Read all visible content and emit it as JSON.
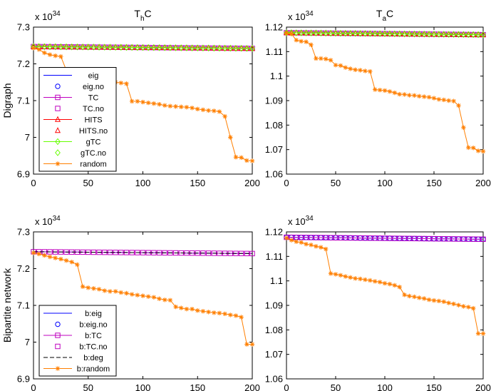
{
  "chart_data": [
    {
      "type": "line",
      "title_main": "T",
      "title_sub": "h",
      "title_tail": "C",
      "ylabel": "Digraph",
      "exponent_base": "x 10",
      "exponent_power": "34",
      "xlim": [
        0,
        200
      ],
      "ylim": [
        6.9,
        7.3
      ],
      "xticks": [
        "0",
        "50",
        "100",
        "150",
        "200"
      ],
      "yticks": [
        "6.9",
        "7",
        "7.1",
        "7.2",
        "7.3"
      ],
      "legend_position": "lower-left",
      "flat": {
        "start": 7.247,
        "end": 7.242
      },
      "series": [
        {
          "name": "eig",
          "color": "#0000ff",
          "dash": false,
          "marker": "none"
        },
        {
          "name": "eig.no",
          "color": "#0000ff",
          "dash": false,
          "marker": "circle",
          "markerOnly": true
        },
        {
          "name": "TC",
          "color": "#bf00bf",
          "dash": false,
          "marker": "square"
        },
        {
          "name": "TC.no",
          "color": "#bf00bf",
          "dash": false,
          "marker": "square",
          "markerOnly": true
        },
        {
          "name": "HITS",
          "color": "#ff0000",
          "dash": false,
          "marker": "triangle"
        },
        {
          "name": "HITS.no",
          "color": "#ff0000",
          "dash": false,
          "marker": "triangle",
          "markerOnly": true
        },
        {
          "name": "gTC",
          "color": "#66ff00",
          "dash": false,
          "marker": "diamond"
        },
        {
          "name": "gTC.no",
          "color": "#66ff00",
          "dash": false,
          "marker": "diamond",
          "markerOnly": true
        },
        {
          "name": "random",
          "color": "#ff7f00",
          "dash": false,
          "marker": "star"
        }
      ],
      "random": [
        [
          0,
          7.243
        ],
        [
          5,
          7.239
        ],
        [
          10,
          7.23
        ],
        [
          15,
          7.225
        ],
        [
          20,
          7.222
        ],
        [
          25,
          7.22
        ],
        [
          30,
          7.183
        ],
        [
          35,
          7.183
        ],
        [
          40,
          7.182
        ],
        [
          45,
          7.178
        ],
        [
          50,
          7.165
        ],
        [
          55,
          7.162
        ],
        [
          60,
          7.158
        ],
        [
          65,
          7.155
        ],
        [
          70,
          7.153
        ],
        [
          75,
          7.15
        ],
        [
          80,
          7.148
        ],
        [
          85,
          7.146
        ],
        [
          90,
          7.098
        ],
        [
          95,
          7.098
        ],
        [
          100,
          7.096
        ],
        [
          105,
          7.094
        ],
        [
          110,
          7.092
        ],
        [
          115,
          7.09
        ],
        [
          120,
          7.087
        ],
        [
          125,
          7.085
        ],
        [
          130,
          7.084
        ],
        [
          135,
          7.083
        ],
        [
          140,
          7.082
        ],
        [
          145,
          7.08
        ],
        [
          150,
          7.077
        ],
        [
          155,
          7.075
        ],
        [
          160,
          7.073
        ],
        [
          165,
          7.072
        ],
        [
          170,
          7.07
        ],
        [
          175,
          7.057
        ],
        [
          180,
          7.0
        ],
        [
          185,
          6.946
        ],
        [
          190,
          6.945
        ],
        [
          195,
          6.937
        ],
        [
          200,
          6.936
        ]
      ]
    },
    {
      "type": "line",
      "title_main": "T",
      "title_sub": "a",
      "title_tail": "C",
      "ylabel": "",
      "exponent_base": "x 10",
      "exponent_power": "34",
      "xlim": [
        0,
        200
      ],
      "ylim": [
        1.06,
        1.12
      ],
      "xticks": [
        "0",
        "50",
        "100",
        "150",
        "200"
      ],
      "yticks": [
        "1.06",
        "1.07",
        "1.08",
        "1.09",
        "1.1",
        "1.11",
        "1.12"
      ],
      "legend_position": "none",
      "flat": {
        "start": 1.1177,
        "end": 1.1169
      },
      "series": [
        {
          "name": "eig",
          "color": "#0000ff",
          "dash": false,
          "marker": "none"
        },
        {
          "name": "TC",
          "color": "#bf00bf",
          "dash": false,
          "marker": "square"
        },
        {
          "name": "HITS",
          "color": "#ff0000",
          "dash": false,
          "marker": "triangle"
        },
        {
          "name": "gTC",
          "color": "#66ff00",
          "dash": false,
          "marker": "diamond"
        },
        {
          "name": "random",
          "color": "#ff7f00",
          "dash": false,
          "marker": "star"
        }
      ],
      "random": [
        [
          0,
          1.1175
        ],
        [
          5,
          1.1172
        ],
        [
          10,
          1.1147
        ],
        [
          15,
          1.1142
        ],
        [
          20,
          1.114
        ],
        [
          25,
          1.1128
        ],
        [
          30,
          1.1072
        ],
        [
          35,
          1.1072
        ],
        [
          40,
          1.107
        ],
        [
          45,
          1.1065
        ],
        [
          50,
          1.1045
        ],
        [
          55,
          1.1043
        ],
        [
          60,
          1.1035
        ],
        [
          65,
          1.103
        ],
        [
          70,
          1.1026
        ],
        [
          75,
          1.1024
        ],
        [
          80,
          1.1021
        ],
        [
          85,
          1.1019
        ],
        [
          90,
          1.0945
        ],
        [
          95,
          1.0943
        ],
        [
          100,
          1.0941
        ],
        [
          105,
          1.0937
        ],
        [
          110,
          1.0932
        ],
        [
          115,
          1.0926
        ],
        [
          120,
          1.0925
        ],
        [
          125,
          1.0922
        ],
        [
          130,
          1.0921
        ],
        [
          135,
          1.0918
        ],
        [
          140,
          1.0916
        ],
        [
          145,
          1.0914
        ],
        [
          150,
          1.091
        ],
        [
          155,
          1.0905
        ],
        [
          160,
          1.0903
        ],
        [
          165,
          1.09
        ],
        [
          170,
          1.0898
        ],
        [
          175,
          1.088
        ],
        [
          180,
          1.079
        ],
        [
          185,
          1.0708
        ],
        [
          190,
          1.0707
        ],
        [
          195,
          1.0695
        ],
        [
          200,
          1.0693
        ]
      ]
    },
    {
      "type": "line",
      "title_main": "",
      "title_sub": "",
      "title_tail": "",
      "ylabel": "Bipartite network",
      "exponent_base": "x 10",
      "exponent_power": "34",
      "xlim": [
        0,
        200
      ],
      "ylim": [
        6.9,
        7.3
      ],
      "xticks": [
        "0",
        "50",
        "100",
        "150",
        "200"
      ],
      "yticks": [
        "6.9",
        "7",
        "7.1",
        "7.2",
        "7.3"
      ],
      "legend_position": "lower-left",
      "flat": {
        "start": 7.246,
        "end": 7.241
      },
      "series": [
        {
          "name": "b:eig",
          "color": "#0000ff",
          "dash": false,
          "marker": "none"
        },
        {
          "name": "b:eig.no",
          "color": "#0000ff",
          "dash": false,
          "marker": "circle",
          "markerOnly": true
        },
        {
          "name": "b:TC",
          "color": "#bf00bf",
          "dash": false,
          "marker": "square"
        },
        {
          "name": "b:TC.no",
          "color": "#bf00bf",
          "dash": false,
          "marker": "square",
          "markerOnly": true
        },
        {
          "name": "b:deg",
          "color": "#000000",
          "dash": true,
          "marker": "none"
        },
        {
          "name": "b:random",
          "color": "#ff7f00",
          "dash": false,
          "marker": "star"
        }
      ],
      "random": [
        [
          0,
          7.243
        ],
        [
          5,
          7.24
        ],
        [
          10,
          7.236
        ],
        [
          15,
          7.232
        ],
        [
          20,
          7.229
        ],
        [
          25,
          7.226
        ],
        [
          30,
          7.222
        ],
        [
          35,
          7.218
        ],
        [
          40,
          7.211
        ],
        [
          45,
          7.151
        ],
        [
          50,
          7.148
        ],
        [
          55,
          7.146
        ],
        [
          60,
          7.144
        ],
        [
          65,
          7.14
        ],
        [
          70,
          7.138
        ],
        [
          75,
          7.138
        ],
        [
          80,
          7.135
        ],
        [
          85,
          7.133
        ],
        [
          90,
          7.13
        ],
        [
          95,
          7.128
        ],
        [
          100,
          7.126
        ],
        [
          105,
          7.124
        ],
        [
          110,
          7.122
        ],
        [
          115,
          7.118
        ],
        [
          120,
          7.115
        ],
        [
          125,
          7.114
        ],
        [
          130,
          7.096
        ],
        [
          135,
          7.093
        ],
        [
          140,
          7.09
        ],
        [
          145,
          7.09
        ],
        [
          150,
          7.086
        ],
        [
          155,
          7.084
        ],
        [
          160,
          7.082
        ],
        [
          165,
          7.08
        ],
        [
          170,
          7.079
        ],
        [
          175,
          7.077
        ],
        [
          180,
          7.074
        ],
        [
          185,
          7.072
        ],
        [
          190,
          7.068
        ],
        [
          195,
          6.994
        ],
        [
          200,
          6.994
        ]
      ]
    },
    {
      "type": "line",
      "title_main": "",
      "title_sub": "",
      "title_tail": "",
      "ylabel": "",
      "exponent_base": "x 10",
      "exponent_power": "34",
      "xlim": [
        0,
        200
      ],
      "ylim": [
        1.06,
        1.12
      ],
      "xticks": [
        "0",
        "50",
        "100",
        "150",
        "200"
      ],
      "yticks": [
        "1.06",
        "1.07",
        "1.08",
        "1.09",
        "1.1",
        "1.11",
        "1.12"
      ],
      "legend_position": "none",
      "flat": {
        "start": 1.1178,
        "end": 1.117
      },
      "series": [
        {
          "name": "b:eig",
          "color": "#0000ff",
          "dash": false,
          "marker": "circle"
        },
        {
          "name": "b:TC",
          "color": "#bf00bf",
          "dash": false,
          "marker": "square"
        },
        {
          "name": "b:random",
          "color": "#ff7f00",
          "dash": false,
          "marker": "star"
        }
      ],
      "random": [
        [
          0,
          1.1175
        ],
        [
          5,
          1.1166
        ],
        [
          10,
          1.116
        ],
        [
          15,
          1.1157
        ],
        [
          20,
          1.115
        ],
        [
          25,
          1.1147
        ],
        [
          30,
          1.1141
        ],
        [
          35,
          1.1137
        ],
        [
          40,
          1.113
        ],
        [
          45,
          1.103
        ],
        [
          50,
          1.1027
        ],
        [
          55,
          1.1023
        ],
        [
          60,
          1.1018
        ],
        [
          65,
          1.1014
        ],
        [
          70,
          1.101
        ],
        [
          75,
          1.1008
        ],
        [
          80,
          1.1005
        ],
        [
          85,
          1.1002
        ],
        [
          90,
          1.0998
        ],
        [
          95,
          1.0995
        ],
        [
          100,
          1.099
        ],
        [
          105,
          1.0987
        ],
        [
          110,
          1.0982
        ],
        [
          115,
          1.0975
        ],
        [
          120,
          1.0943
        ],
        [
          125,
          1.0938
        ],
        [
          130,
          1.0935
        ],
        [
          135,
          1.0931
        ],
        [
          140,
          1.0928
        ],
        [
          145,
          1.0923
        ],
        [
          150,
          1.092
        ],
        [
          155,
          1.0918
        ],
        [
          160,
          1.0915
        ],
        [
          165,
          1.091
        ],
        [
          170,
          1.0906
        ],
        [
          175,
          1.0901
        ],
        [
          180,
          1.0896
        ],
        [
          185,
          1.0893
        ],
        [
          190,
          1.0888
        ],
        [
          195,
          1.0785
        ],
        [
          200,
          1.0785
        ]
      ]
    }
  ]
}
